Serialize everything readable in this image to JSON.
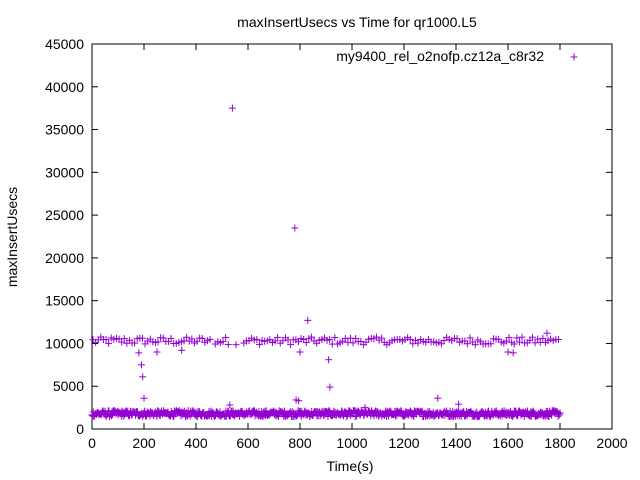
{
  "chart_data": {
    "type": "scatter",
    "title": "maxInsertUsecs vs Time for qr1000.L5",
    "xlabel": "Time(s)",
    "ylabel": "maxInsertUsecs",
    "xlim": [
      0,
      2000
    ],
    "ylim": [
      0,
      45000
    ],
    "x_ticks": [
      "0",
      "200",
      "400",
      "600",
      "800",
      "1000",
      "1200",
      "1400",
      "1600",
      "1800",
      "2000"
    ],
    "y_ticks": [
      "0",
      "5000",
      "10000",
      "15000",
      "20000",
      "25000",
      "30000",
      "35000",
      "40000",
      "45000"
    ],
    "grid": false,
    "legend_position": "top-right",
    "marker": "plus",
    "color": "#9400d3",
    "series": [
      {
        "name": "my9400_rel_o2nofp.cz12a_c8r32",
        "upper_band": {
          "x_start": 0,
          "x_end": 1800,
          "y_center": 10300
        },
        "lower_band": {
          "x_start": 0,
          "x_end": 1800,
          "y_center": 1800
        },
        "outliers": [
          {
            "x": 540,
            "y": 37500
          },
          {
            "x": 780,
            "y": 23500
          },
          {
            "x": 830,
            "y": 12700
          },
          {
            "x": 180,
            "y": 8900
          },
          {
            "x": 190,
            "y": 7500
          },
          {
            "x": 195,
            "y": 6100
          },
          {
            "x": 200,
            "y": 3600
          },
          {
            "x": 250,
            "y": 9000
          },
          {
            "x": 345,
            "y": 9200
          },
          {
            "x": 785,
            "y": 3400
          },
          {
            "x": 795,
            "y": 3300
          },
          {
            "x": 800,
            "y": 9000
          },
          {
            "x": 910,
            "y": 8100
          },
          {
            "x": 915,
            "y": 4900
          },
          {
            "x": 1050,
            "y": 2500
          },
          {
            "x": 1330,
            "y": 3600
          },
          {
            "x": 1410,
            "y": 2900
          },
          {
            "x": 1600,
            "y": 9000
          },
          {
            "x": 1620,
            "y": 8900
          },
          {
            "x": 530,
            "y": 2800
          },
          {
            "x": 1750,
            "y": 11200
          }
        ]
      }
    ]
  }
}
